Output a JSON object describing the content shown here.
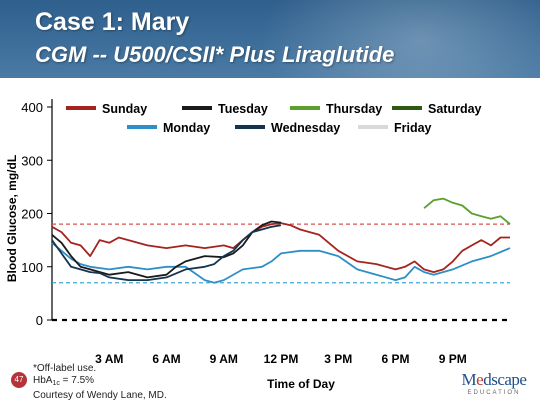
{
  "slide": {
    "title": "Case 1: Mary",
    "subtitle": "CGM -- U500/CSII* Plus Liraglutide",
    "page_number": "47",
    "footnote_line1": "*Off-label use.",
    "footnote_hba1c_prefix": "HbA",
    "footnote_hba1c_subscript": "1c",
    "footnote_hba1c_value": " = 7.5%",
    "footnote_line3": "Courtesy of Wendy Lane, MD.",
    "logo_prefix": "M",
    "logo_e": "e",
    "logo_suffix": "dscape",
    "logo_sub": "EDUCATION"
  },
  "chart_data": {
    "type": "line",
    "title": "",
    "xlabel": "Time of Day",
    "ylabel": "Blood Glucose, mg/dL",
    "xlim": [
      0,
      24
    ],
    "ylim": [
      0,
      400
    ],
    "yticks": [
      0,
      100,
      200,
      300,
      400
    ],
    "xticks": [
      {
        "value": 3,
        "label": "3 AM"
      },
      {
        "value": 6,
        "label": "6 AM"
      },
      {
        "value": 9,
        "label": "9 AM"
      },
      {
        "value": 12,
        "label": "12 PM"
      },
      {
        "value": 15,
        "label": "3 PM"
      },
      {
        "value": 18,
        "label": "6 PM"
      },
      {
        "value": 21,
        "label": "9 PM"
      }
    ],
    "grid": false,
    "legend_position": "top",
    "reference_lines": [
      {
        "y": 180,
        "color": "#d9534f",
        "style": "dashed"
      },
      {
        "y": 70,
        "color": "#3fa7d6",
        "style": "dashed"
      },
      {
        "y": 0,
        "color": "#000000",
        "style": "dashed"
      }
    ],
    "series": [
      {
        "name": "Sunday",
        "color": "#a5231f",
        "x": [
          0,
          0.5,
          1,
          1.5,
          2,
          2.5,
          3,
          3.5,
          4,
          5,
          6,
          7,
          8,
          9,
          9.5,
          10,
          10.5,
          11,
          11.5,
          12,
          12.5,
          13,
          14,
          15,
          16,
          17,
          18,
          18.5,
          19,
          19.5,
          20,
          20.5,
          21,
          21.5,
          22,
          22.5,
          23,
          23.5,
          24
        ],
        "y": [
          175,
          165,
          145,
          140,
          120,
          150,
          145,
          155,
          150,
          140,
          135,
          140,
          135,
          140,
          135,
          150,
          165,
          175,
          180,
          182,
          178,
          170,
          160,
          130,
          110,
          105,
          95,
          100,
          110,
          95,
          90,
          95,
          110,
          130,
          140,
          150,
          140,
          155,
          155
        ]
      },
      {
        "name": "Monday",
        "color": "#2e8fc6",
        "x": [
          0,
          0.5,
          1,
          1.5,
          2,
          3,
          4,
          5,
          6,
          7,
          8,
          8.5,
          9,
          10,
          11,
          11.5,
          12,
          13,
          14,
          15,
          16,
          17,
          18,
          18.5,
          19,
          19.5,
          20,
          21,
          22,
          23,
          24
        ],
        "y": [
          145,
          130,
          115,
          105,
          100,
          95,
          100,
          95,
          100,
          100,
          75,
          70,
          75,
          95,
          100,
          110,
          125,
          130,
          130,
          120,
          95,
          85,
          75,
          80,
          100,
          90,
          85,
          95,
          110,
          120,
          135
        ]
      },
      {
        "name": "Tuesday",
        "color": "#1a1a1a",
        "x": [
          0,
          0.5,
          1,
          1.5,
          2,
          3,
          4,
          5,
          6,
          6.5,
          7,
          7.5,
          8,
          9,
          9.5,
          10,
          10.5,
          11,
          11.5,
          12
        ],
        "y": [
          160,
          145,
          120,
          100,
          95,
          85,
          90,
          80,
          85,
          100,
          110,
          115,
          120,
          118,
          125,
          140,
          165,
          178,
          185,
          183
        ]
      },
      {
        "name": "Wednesday",
        "color": "#14344f",
        "x": [
          0,
          0.5,
          1,
          1.5,
          2,
          2.5,
          3,
          4,
          5,
          6,
          7,
          8,
          8.5,
          9,
          9.5,
          10,
          10.5,
          11,
          11.5,
          12
        ],
        "y": [
          150,
          125,
          100,
          95,
          90,
          88,
          80,
          75,
          75,
          80,
          95,
          100,
          105,
          120,
          130,
          150,
          165,
          170,
          175,
          178
        ]
      },
      {
        "name": "Thursday",
        "color": "#5aa02c",
        "x": [
          19.5,
          20,
          20.5,
          21,
          21.5,
          22,
          22.5,
          23,
          23.5,
          24
        ],
        "y": [
          210,
          225,
          228,
          220,
          215,
          200,
          195,
          190,
          195,
          180
        ]
      },
      {
        "name": "Friday",
        "color": "#d9d9d9",
        "x": [],
        "y": []
      },
      {
        "name": "Saturday",
        "color": "#2f5a12",
        "x": [],
        "y": []
      }
    ]
  }
}
